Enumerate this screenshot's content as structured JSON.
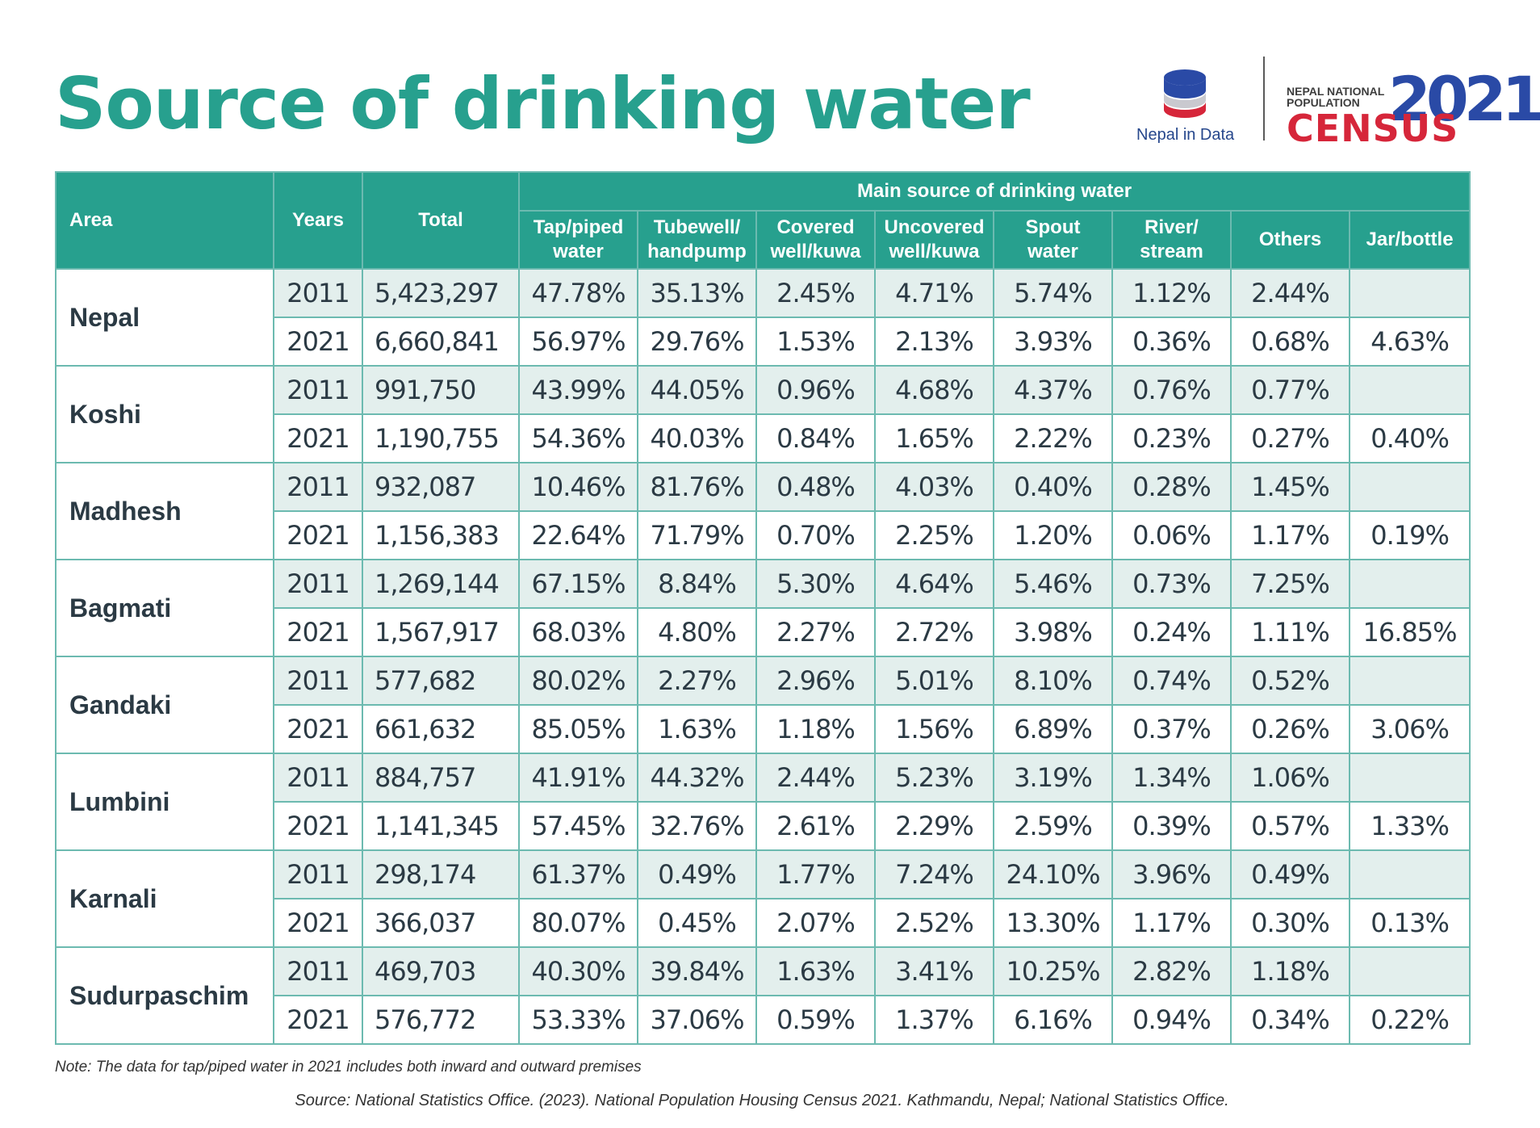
{
  "title": "Source of drinking water",
  "logos": {
    "nepal_in_data": "Nepal in Data",
    "census_line1": "NEPAL NATIONAL",
    "census_line2": "POPULATION",
    "census_word": "CENSUS",
    "census_year": "2021"
  },
  "table": {
    "headers": {
      "area": "Area",
      "years": "Years",
      "total": "Total",
      "group": "Main source of drinking water",
      "columns": [
        [
          "Tap/piped",
          "water"
        ],
        [
          "Tubewell/",
          "handpump"
        ],
        [
          "Covered",
          "well/kuwa"
        ],
        [
          "Uncovered",
          "well/kuwa"
        ],
        [
          "Spout",
          "water"
        ],
        [
          "River/",
          "stream"
        ],
        [
          "Others",
          ""
        ],
        [
          "Jar/bottle",
          ""
        ]
      ]
    },
    "regions": [
      {
        "area": "Nepal",
        "rows": [
          {
            "year": "2011",
            "total": "5,423,297",
            "values": [
              "47.78%",
              "35.13%",
              "2.45%",
              "4.71%",
              "5.74%",
              "1.12%",
              "2.44%",
              ""
            ]
          },
          {
            "year": "2021",
            "total": "6,660,841",
            "values": [
              "56.97%",
              "29.76%",
              "1.53%",
              "2.13%",
              "3.93%",
              "0.36%",
              "0.68%",
              "4.63%"
            ]
          }
        ]
      },
      {
        "area": "Koshi",
        "rows": [
          {
            "year": "2011",
            "total": "991,750",
            "values": [
              "43.99%",
              "44.05%",
              "0.96%",
              "4.68%",
              "4.37%",
              "0.76%",
              "0.77%",
              ""
            ]
          },
          {
            "year": "2021",
            "total": "1,190,755",
            "values": [
              "54.36%",
              "40.03%",
              "0.84%",
              "1.65%",
              "2.22%",
              "0.23%",
              "0.27%",
              "0.40%"
            ]
          }
        ]
      },
      {
        "area": "Madhesh",
        "rows": [
          {
            "year": "2011",
            "total": "932,087",
            "values": [
              "10.46%",
              "81.76%",
              "0.48%",
              "4.03%",
              "0.40%",
              "0.28%",
              "1.45%",
              ""
            ]
          },
          {
            "year": "2021",
            "total": "1,156,383",
            "values": [
              "22.64%",
              "71.79%",
              "0.70%",
              "2.25%",
              "1.20%",
              "0.06%",
              "1.17%",
              "0.19%"
            ]
          }
        ]
      },
      {
        "area": "Bagmati",
        "rows": [
          {
            "year": "2011",
            "total": "1,269,144",
            "values": [
              "67.15%",
              "8.84%",
              "5.30%",
              "4.64%",
              "5.46%",
              "0.73%",
              "7.25%",
              ""
            ]
          },
          {
            "year": "2021",
            "total": "1,567,917",
            "values": [
              "68.03%",
              "4.80%",
              "2.27%",
              "2.72%",
              "3.98%",
              "0.24%",
              "1.11%",
              "16.85%"
            ]
          }
        ]
      },
      {
        "area": "Gandaki",
        "rows": [
          {
            "year": "2011",
            "total": "577,682",
            "values": [
              "80.02%",
              "2.27%",
              "2.96%",
              "5.01%",
              "8.10%",
              "0.74%",
              "0.52%",
              ""
            ]
          },
          {
            "year": "2021",
            "total": "661,632",
            "values": [
              "85.05%",
              "1.63%",
              "1.18%",
              "1.56%",
              "6.89%",
              "0.37%",
              "0.26%",
              "3.06%"
            ]
          }
        ]
      },
      {
        "area": "Lumbini",
        "rows": [
          {
            "year": "2011",
            "total": "884,757",
            "values": [
              "41.91%",
              "44.32%",
              "2.44%",
              "5.23%",
              "3.19%",
              "1.34%",
              "1.06%",
              ""
            ]
          },
          {
            "year": "2021",
            "total": "1,141,345",
            "values": [
              "57.45%",
              "32.76%",
              "2.61%",
              "2.29%",
              "2.59%",
              "0.39%",
              "0.57%",
              "1.33%"
            ]
          }
        ]
      },
      {
        "area": "Karnali",
        "rows": [
          {
            "year": "2011",
            "total": "298,174",
            "values": [
              "61.37%",
              "0.49%",
              "1.77%",
              "7.24%",
              "24.10%",
              "3.96%",
              "0.49%",
              ""
            ]
          },
          {
            "year": "2021",
            "total": "366,037",
            "values": [
              "80.07%",
              "0.45%",
              "2.07%",
              "2.52%",
              "13.30%",
              "1.17%",
              "0.30%",
              "0.13%"
            ]
          }
        ]
      },
      {
        "area": "Sudurpaschim",
        "rows": [
          {
            "year": "2011",
            "total": "469,703",
            "values": [
              "40.30%",
              "39.84%",
              "1.63%",
              "3.41%",
              "10.25%",
              "2.82%",
              "1.18%",
              ""
            ]
          },
          {
            "year": "2021",
            "total": "576,772",
            "values": [
              "53.33%",
              "37.06%",
              "0.59%",
              "1.37%",
              "6.16%",
              "0.94%",
              "0.34%",
              "0.22%"
            ]
          }
        ]
      }
    ]
  },
  "note": "Note: The data for tap/piped water in 2021 includes both inward and outward premises",
  "source": "Source: National Statistics Office. (2023). National Population Housing Census 2021. Kathmandu, Nepal; National Statistics Office.",
  "colors": {
    "accent": "#27a08e",
    "row_tint": "#e3efed",
    "census_red": "#d6263a",
    "census_blue": "#2a4aa6"
  }
}
